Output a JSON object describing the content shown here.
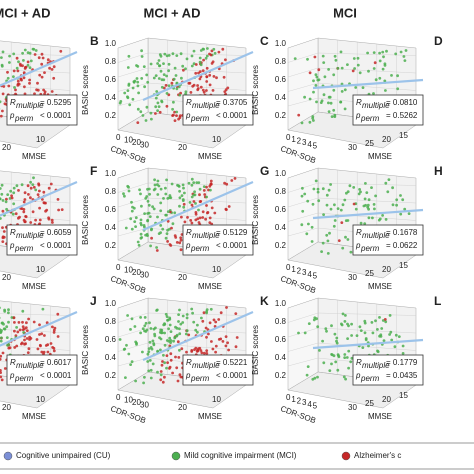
{
  "titles": [
    "MCI + AD",
    "MCI + AD",
    "MCI"
  ],
  "axes": {
    "y_label": "BASIC scores",
    "x_label": "CDR-SOB",
    "z_label": "MMSE",
    "r_label": "R",
    "r_sub": "multiple",
    "p_label": "p",
    "p_sub": "perm"
  },
  "panels": [
    {
      "col": 0,
      "row": 0,
      "r": "= 0.5295",
      "p": "< 0.0001",
      "mmse_ticks": [
        "20",
        "10"
      ]
    },
    {
      "col": 1,
      "row": 0,
      "letter": "B",
      "r": "= 0.3705",
      "p": "< 0.0001",
      "y_ticks": [
        "1.0",
        "0.8",
        "0.6",
        "0.4",
        "0.2"
      ],
      "cdr_ticks": [
        "0",
        "10",
        "20",
        "30"
      ],
      "mmse_ticks": [
        "20",
        "10"
      ]
    },
    {
      "col": 2,
      "row": 0,
      "letter": "C",
      "r": "= 0.0810",
      "p": "= 0.5262",
      "y_ticks": [
        "1.0",
        "0.8",
        "0.6",
        "0.4",
        "0.2"
      ],
      "cdr_ticks": [
        "0",
        "1",
        "2",
        "3",
        "4",
        "5"
      ],
      "mmse_ticks": [
        "30",
        "25",
        "20",
        "15"
      ]
    },
    {
      "col": 3,
      "row": 0,
      "letter": "D"
    },
    {
      "col": 0,
      "row": 1,
      "r": "= 0.6059",
      "p": "< 0.0001",
      "mmse_ticks": [
        "20",
        "10"
      ]
    },
    {
      "col": 1,
      "row": 1,
      "letter": "F",
      "r": "= 0.5129",
      "p": "< 0.0001",
      "y_ticks": [
        "1.0",
        "0.8",
        "0.6",
        "0.4",
        "0.2"
      ],
      "cdr_ticks": [
        "0",
        "10",
        "20",
        "30"
      ],
      "mmse_ticks": [
        "20",
        "10"
      ]
    },
    {
      "col": 2,
      "row": 1,
      "letter": "G",
      "r": "= 0.1678",
      "p": "= 0.0622",
      "y_ticks": [
        "1.0",
        "0.8",
        "0.6",
        "0.4",
        "0.2"
      ],
      "cdr_ticks": [
        "0",
        "1",
        "2",
        "3",
        "4",
        "5"
      ],
      "mmse_ticks": [
        "30",
        "25",
        "20",
        "15"
      ]
    },
    {
      "col": 3,
      "row": 1,
      "letter": "H"
    },
    {
      "col": 0,
      "row": 2,
      "r": "= 0.6017",
      "p": "< 0.0001",
      "mmse_ticks": [
        "20",
        "10"
      ]
    },
    {
      "col": 1,
      "row": 2,
      "letter": "J",
      "r": "= 0.5221",
      "p": "< 0.0001",
      "y_ticks": [
        "1.0",
        "0.8",
        "0.6",
        "0.4",
        "0.2"
      ],
      "cdr_ticks": [
        "0",
        "10",
        "20",
        "30"
      ],
      "mmse_ticks": [
        "20",
        "10"
      ]
    },
    {
      "col": 2,
      "row": 2,
      "letter": "K",
      "r": "= 0.1779",
      "p": "= 0.0435",
      "y_ticks": [
        "1.0",
        "0.8",
        "0.6",
        "0.4",
        "0.2"
      ],
      "cdr_ticks": [
        "0",
        "1",
        "2",
        "3",
        "4",
        "5"
      ],
      "mmse_ticks": [
        "30",
        "25",
        "20",
        "15"
      ]
    },
    {
      "col": 3,
      "row": 2,
      "letter": "L"
    }
  ],
  "legend": [
    {
      "label": "Cognitive unimpaired (CU)",
      "color": "#7b8fd6"
    },
    {
      "label": "Mild cognitive impairment (MCI)",
      "color": "#4caf50"
    },
    {
      "label": "Alzheimer's c",
      "color": "#c62828"
    }
  ]
}
